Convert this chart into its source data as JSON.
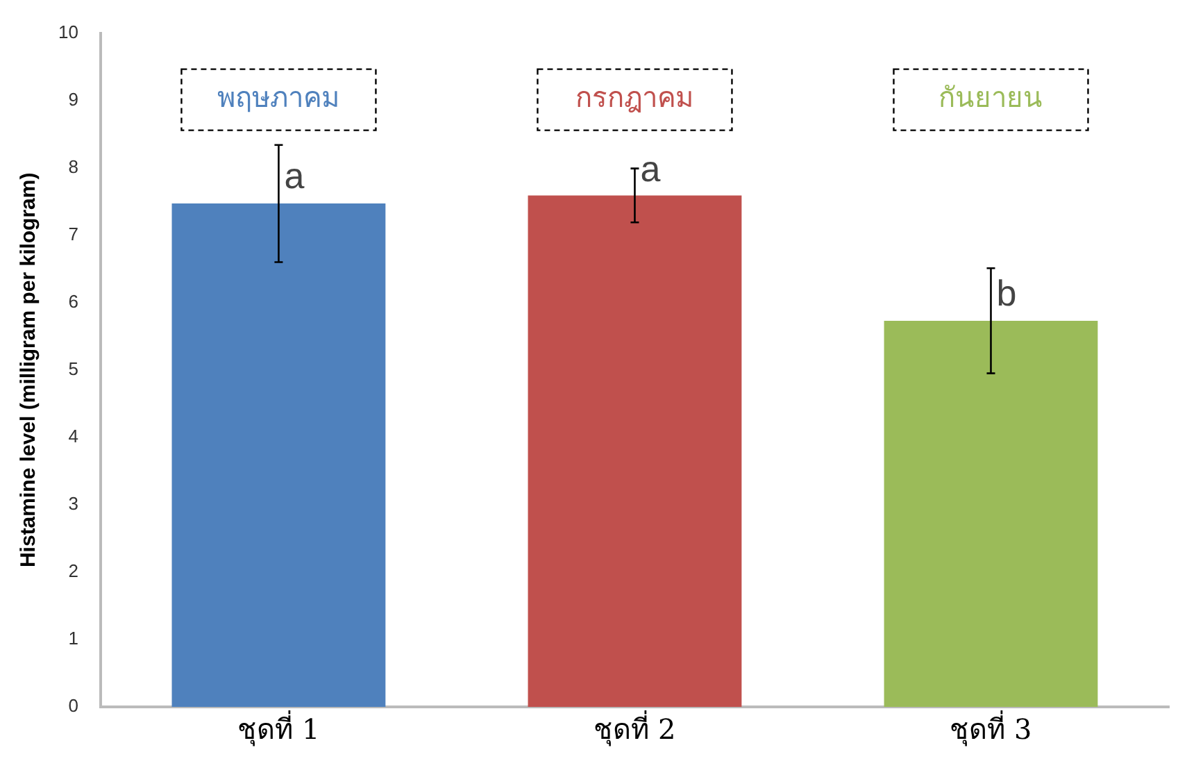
{
  "chart_data": {
    "type": "bar",
    "ylabel": "Histamine level (milligram per kilogram)",
    "categories": [
      "ชุดที่ 1",
      "ชุดที่ 2",
      "ชุดที่ 3"
    ],
    "values": [
      7.47,
      7.59,
      5.73
    ],
    "colors": [
      "#4f81bd",
      "#c0504d",
      "#9bbb59"
    ],
    "errors": [
      0.87,
      0.4,
      0.78
    ],
    "ylim": [
      0,
      10
    ],
    "yticks": [
      0,
      1,
      2,
      3,
      4,
      5,
      6,
      7,
      8,
      9,
      10
    ],
    "grid": false,
    "legend": false,
    "annotations": [
      "พฤษภาคม",
      "กรกฎาคม",
      "กันยายน",
      {
        "text": "a",
        "x": "ชุดที่ 1",
        "y": 7.85
      },
      {
        "text": "a",
        "x": "ชุดที่ 2",
        "y": 7.95
      },
      {
        "text": "b",
        "x": "ชุดที่ 3",
        "y": 6.1
      }
    ]
  }
}
